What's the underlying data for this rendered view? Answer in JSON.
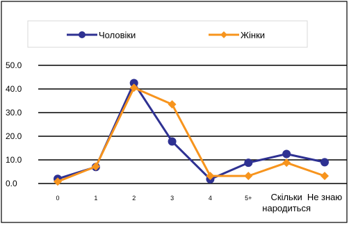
{
  "chart_data": {
    "type": "line",
    "categories": [
      "0",
      "1",
      "2",
      "3",
      "4",
      "5+",
      "Скільки\nнародиться",
      "Не знаю"
    ],
    "series": [
      {
        "name": "Чоловіки",
        "color": "#2E3192",
        "marker": "circle",
        "values": [
          2.0,
          7.0,
          42.5,
          17.8,
          1.8,
          8.8,
          12.5,
          9.0
        ]
      },
      {
        "name": "Жінки",
        "color": "#F7941D",
        "marker": "diamond",
        "values": [
          0.8,
          7.2,
          40.5,
          33.5,
          3.2,
          3.2,
          8.8,
          3.2
        ]
      }
    ],
    "ylim": [
      0,
      50
    ],
    "yticks": [
      "0.0",
      "10.0",
      "20.0",
      "30.0",
      "40.0",
      "50.0"
    ],
    "grid": true,
    "legend_position": "top"
  }
}
